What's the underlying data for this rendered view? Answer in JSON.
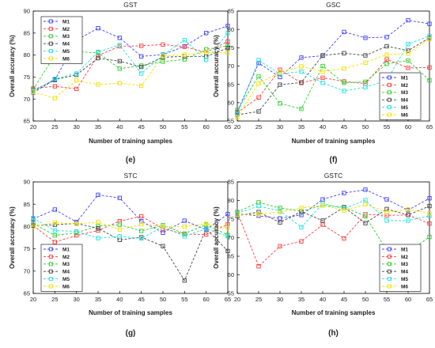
{
  "chart_data": [
    {
      "type": "line",
      "title": "GST",
      "panel_label": "(e)",
      "xlabel": "Number of training samples",
      "ylabel": "Overall accuracy (%)",
      "x": [
        20,
        25,
        30,
        35,
        40,
        45,
        50,
        55,
        60,
        65
      ],
      "xlim": [
        20,
        65
      ],
      "ylim": [
        65,
        90
      ],
      "xticks": [
        "20",
        "25",
        "30",
        "35",
        "40",
        "45",
        "50",
        "55",
        "60",
        "65"
      ],
      "yticks": [
        "65",
        "70",
        "75",
        "80",
        "85",
        "90"
      ],
      "legend_position": "top-left",
      "series": [
        {
          "name": "M1",
          "color": "#4040ff",
          "values": [
            72.0,
            74.3,
            83.4,
            86.1,
            83.9,
            79.7,
            80.1,
            82.0,
            85.0,
            86.6
          ]
        },
        {
          "name": "M2",
          "color": "#ff3b3b",
          "values": [
            72.4,
            72.9,
            72.3,
            79.9,
            82.0,
            82.1,
            82.4,
            81.9,
            80.6,
            83.1
          ]
        },
        {
          "name": "M3",
          "color": "#2ecc2e",
          "values": [
            72.2,
            80.0,
            80.8,
            80.5,
            76.9,
            77.6,
            78.5,
            79.0,
            81.3,
            82.1
          ]
        },
        {
          "name": "M4",
          "color": "#444444",
          "values": [
            71.5,
            74.4,
            75.5,
            79.3,
            78.6,
            77.3,
            79.5,
            79.7,
            79.7,
            81.6
          ]
        },
        {
          "name": "M5",
          "color": "#22e0e0",
          "values": [
            71.7,
            74.6,
            75.8,
            80.7,
            82.3,
            75.8,
            80.0,
            83.4,
            78.9,
            85.0
          ]
        },
        {
          "name": "M6",
          "color": "#f2e000",
          "values": [
            71.6,
            70.2,
            74.2,
            73.3,
            73.6,
            73.0,
            79.8,
            80.1,
            80.6,
            80.5
          ]
        }
      ]
    },
    {
      "type": "line",
      "title": "GSC",
      "panel_label": "(f)",
      "xlabel": "Number of training samples",
      "ylabel": "Overall accuracy (%)",
      "x": [
        20,
        25,
        30,
        35,
        40,
        45,
        50,
        55,
        60,
        65
      ],
      "xlim": [
        20,
        65
      ],
      "ylim": [
        55,
        85
      ],
      "xticks": [
        "20",
        "25",
        "30",
        "35",
        "40",
        "45",
        "50",
        "55",
        "60",
        "65"
      ],
      "yticks": [
        "55",
        "60",
        "65",
        "70",
        "75",
        "80",
        "85"
      ],
      "legend_position": "bottom-right",
      "series": [
        {
          "name": "M1",
          "color": "#4040ff",
          "values": [
            57.5,
            70.8,
            67.0,
            72.3,
            72.8,
            79.3,
            77.7,
            77.9,
            82.5,
            81.5
          ]
        },
        {
          "name": "M2",
          "color": "#ff3b3b",
          "values": [
            57.3,
            61.4,
            69.0,
            65.4,
            66.8,
            65.8,
            65.2,
            71.8,
            69.5,
            69.6
          ]
        },
        {
          "name": "M3",
          "color": "#2ecc2e",
          "values": [
            58.0,
            67.2,
            59.8,
            58.3,
            70.0,
            65.4,
            65.7,
            70.6,
            71.5,
            66.1
          ]
        },
        {
          "name": "M4",
          "color": "#444444",
          "values": [
            56.7,
            57.6,
            64.9,
            65.5,
            72.9,
            73.5,
            72.9,
            75.4,
            74.2,
            77.7
          ]
        },
        {
          "name": "M5",
          "color": "#22e0e0",
          "values": [
            56.8,
            71.6,
            67.8,
            68.5,
            65.4,
            63.2,
            64.2,
            66.1,
            76.0,
            78.2
          ]
        },
        {
          "name": "M6",
          "color": "#f2e000",
          "values": [
            56.0,
            65.3,
            68.3,
            69.9,
            68.5,
            69.3,
            70.9,
            73.1,
            73.4,
            77.4
          ]
        }
      ]
    },
    {
      "type": "line",
      "title": "STC",
      "panel_label": "(g)",
      "xlabel": "Number of training samples",
      "ylabel": "Overall accuracy (%)",
      "x": [
        20,
        25,
        30,
        35,
        40,
        45,
        50,
        55,
        60,
        65
      ],
      "xlim": [
        20,
        65
      ],
      "ylim": [
        65,
        90
      ],
      "xticks": [
        "20",
        "25",
        "30",
        "35",
        "40",
        "45",
        "50",
        "55",
        "60",
        "65"
      ],
      "yticks": [
        "65",
        "70",
        "75",
        "80",
        "85",
        "90"
      ],
      "legend_position": "bottom-left",
      "series": [
        {
          "name": "M1",
          "color": "#4040ff",
          "values": [
            81.7,
            83.8,
            81.0,
            87.1,
            86.4,
            81.2,
            78.6,
            81.3,
            79.3,
            82.8
          ]
        },
        {
          "name": "M2",
          "color": "#ff3b3b",
          "values": [
            80.2,
            76.5,
            78.0,
            79.1,
            81.2,
            82.3,
            79.5,
            78.3,
            78.2,
            80.5
          ]
        },
        {
          "name": "M3",
          "color": "#2ecc2e",
          "values": [
            80.7,
            78.0,
            78.6,
            80.1,
            80.4,
            79.0,
            80.3,
            78.4,
            80.4,
            78.1
          ]
        },
        {
          "name": "M4",
          "color": "#444444",
          "values": [
            80.2,
            80.4,
            80.7,
            79.6,
            77.0,
            77.6,
            75.6,
            67.9,
            79.5,
            74.5
          ]
        },
        {
          "name": "M5",
          "color": "#22e0e0",
          "values": [
            81.9,
            79.1,
            78.9,
            77.4,
            77.8,
            77.3,
            80.0,
            77.8,
            79.5,
            77.8
          ]
        },
        {
          "name": "M6",
          "color": "#f2e000",
          "values": [
            80.0,
            80.9,
            80.6,
            81.0,
            79.3,
            80.5,
            80.0,
            80.0,
            80.6,
            79.7
          ]
        }
      ]
    },
    {
      "type": "line",
      "title": "GSTC",
      "panel_label": "(h)",
      "xlabel": "Number of training samples",
      "ylabel": "Overall accuracy (%)",
      "x": [
        20,
        25,
        30,
        35,
        40,
        45,
        50,
        55,
        60,
        65
      ],
      "xlim": [
        20,
        65
      ],
      "ylim": [
        55,
        85
      ],
      "xticks": [
        "20",
        "25",
        "30",
        "35",
        "40",
        "45",
        "50",
        "55",
        "60",
        "65"
      ],
      "yticks": [
        "55",
        "60",
        "65",
        "70",
        "75",
        "80",
        "85"
      ],
      "legend_position": "bottom-right",
      "series": [
        {
          "name": "M1",
          "color": "#4040ff",
          "values": [
            76.4,
            75.9,
            75.2,
            76.1,
            80.3,
            82.0,
            82.9,
            80.3,
            77.4,
            80.6
          ]
        },
        {
          "name": "M2",
          "color": "#ff3b3b",
          "values": [
            76.9,
            62.3,
            67.7,
            69.0,
            73.5,
            69.8,
            76.3,
            76.0,
            76.1,
            73.8
          ]
        },
        {
          "name": "M3",
          "color": "#2ecc2e",
          "values": [
            76.9,
            79.5,
            78.0,
            77.1,
            78.7,
            78.2,
            75.8,
            66.6,
            66.1,
            70.2
          ]
        },
        {
          "name": "M4",
          "color": "#444444",
          "values": [
            75.9,
            76.9,
            74.1,
            77.0,
            74.6,
            78.2,
            73.9,
            77.7,
            76.1,
            78.5
          ]
        },
        {
          "name": "M5",
          "color": "#22e0e0",
          "values": [
            76.5,
            78.5,
            77.2,
            72.8,
            79.2,
            77.8,
            80.1,
            74.6,
            74.6,
            75.9
          ]
        },
        {
          "name": "M6",
          "color": "#f2e000",
          "values": [
            76.2,
            76.3,
            76.9,
            78.0,
            78.7,
            77.3,
            79.0,
            76.9,
            77.6,
            76.6
          ]
        }
      ]
    }
  ]
}
